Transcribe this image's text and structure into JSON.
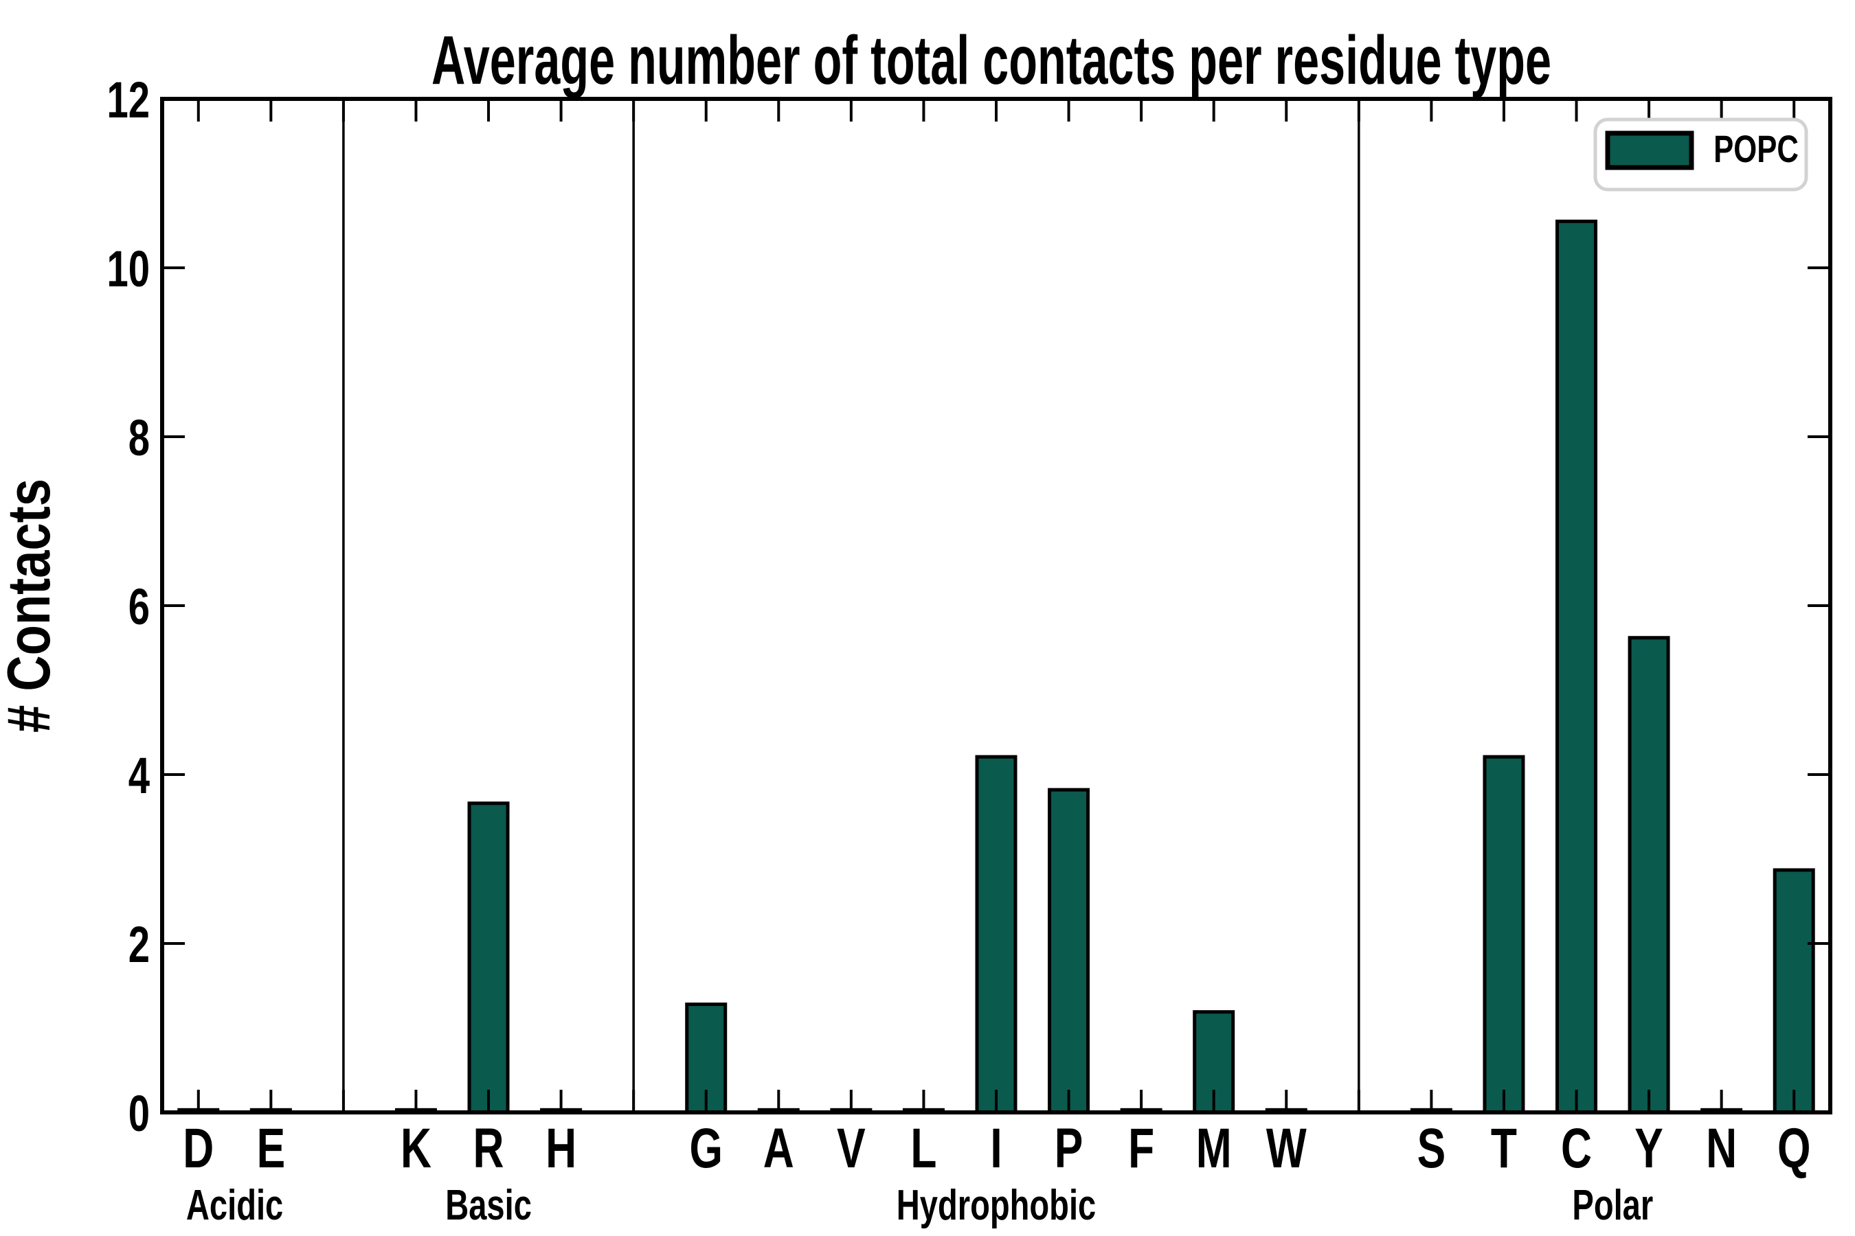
{
  "title": "Average number of total contacts per residue type",
  "ylabel": "# Contacts",
  "legend": {
    "label": "POPC",
    "position": "upper right"
  },
  "colors": {
    "bar_fill": "#0a5a4e",
    "bar_edge": "#000000",
    "spine": "#000000",
    "separator": "#000000",
    "legend_border": "#d2d2d2",
    "background": "#ffffff"
  },
  "chart_data": {
    "type": "bar",
    "title": "Average number of total contacts per residue type",
    "xlabel": "",
    "ylabel": "# Contacts",
    "ylim": [
      0,
      12
    ],
    "yticks": [
      0,
      2,
      4,
      6,
      8,
      10,
      12
    ],
    "grid": false,
    "legend_entries": [
      "POPC"
    ],
    "legend_position": "upper right",
    "series_name": "POPC",
    "groups": [
      {
        "label": "Acidic",
        "categories": [
          "D",
          "E"
        ],
        "values": [
          0.03,
          0.03
        ]
      },
      {
        "label": "Basic",
        "categories": [
          "K",
          "R",
          "H"
        ],
        "values": [
          0.03,
          3.66,
          0.03
        ]
      },
      {
        "label": "Hydrophobic",
        "categories": [
          "G",
          "A",
          "V",
          "L",
          "I",
          "P",
          "F",
          "M",
          "W"
        ],
        "values": [
          1.28,
          0.03,
          0.03,
          0.03,
          4.21,
          3.82,
          0.03,
          1.19,
          0.03
        ]
      },
      {
        "label": "Polar",
        "categories": [
          "S",
          "T",
          "C",
          "Y",
          "N",
          "Q"
        ],
        "values": [
          0.03,
          4.21,
          10.55,
          5.62,
          0.03,
          2.87
        ]
      }
    ]
  }
}
